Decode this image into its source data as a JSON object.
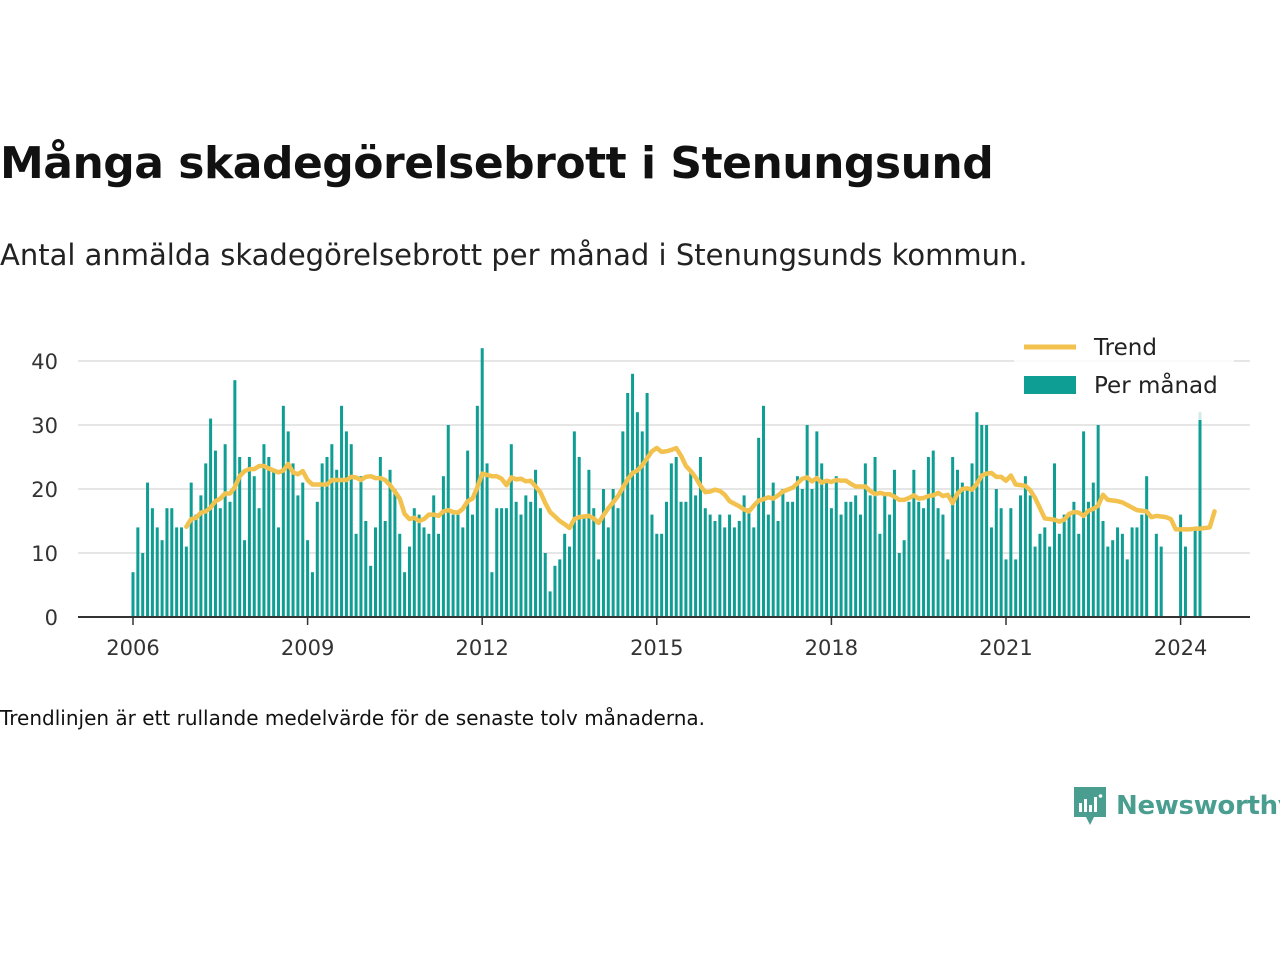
{
  "title": "Många skadegörelsebrott i Stenungsund",
  "subtitle": "Antal anmälda skadegörelsebrott per månad i Stenungsunds kommun.",
  "footnote": "Trendlinjen är ett rullande medelvärde för de senaste tolv månaderna.",
  "brand": {
    "name": "Newsworthy",
    "color": "#4a9e90"
  },
  "colors": {
    "bar": "#0f9e94",
    "trend": "#f2c14e",
    "grid": "#dddddd",
    "axis": "#333333"
  },
  "chart_data": {
    "type": "bar",
    "start": "2006-01",
    "xlabel": "",
    "ylabel": "",
    "ylim": [
      0,
      42
    ],
    "yticks": [
      0,
      10,
      20,
      30,
      40
    ],
    "xticks": [
      "2006",
      "2009",
      "2012",
      "2015",
      "2018",
      "2021",
      "2024"
    ],
    "grid": true,
    "legend_position": "top-right",
    "series": [
      {
        "name": "Per månad",
        "type": "bar",
        "values": [
          7,
          14,
          10,
          21,
          17,
          14,
          12,
          17,
          17,
          14,
          14,
          11,
          21,
          16,
          19,
          24,
          31,
          26,
          17,
          27,
          18,
          37,
          25,
          12,
          25,
          22,
          17,
          27,
          25,
          23,
          14,
          33,
          29,
          24,
          19,
          21,
          12,
          7,
          18,
          24,
          25,
          27,
          23,
          33,
          29,
          27,
          13,
          22,
          15,
          8,
          14,
          25,
          15,
          23,
          20,
          13,
          7,
          11,
          17,
          16,
          14,
          13,
          19,
          13,
          22,
          30,
          16,
          16,
          14,
          26,
          16,
          33,
          42,
          24,
          7,
          17,
          17,
          17,
          27,
          18,
          16,
          19,
          18,
          23,
          17,
          10,
          4,
          8,
          9,
          13,
          11,
          29,
          25,
          16,
          23,
          17,
          9,
          20,
          14,
          20,
          17,
          29,
          35,
          38,
          32,
          29,
          35,
          16,
          13,
          13,
          18,
          24,
          25,
          18,
          18,
          23,
          19,
          25,
          17,
          16,
          15,
          16,
          14,
          16,
          14,
          15,
          19,
          17,
          14,
          28,
          33,
          16,
          21,
          15,
          20,
          18,
          18,
          22,
          20,
          30,
          20,
          29,
          24,
          21,
          17,
          22,
          16,
          18,
          18,
          19,
          16,
          24,
          19,
          25,
          13,
          19,
          16,
          23,
          10,
          12,
          18,
          23,
          18,
          17,
          25,
          26,
          17,
          16,
          9,
          25,
          23,
          21,
          20,
          24,
          32,
          30,
          30,
          14,
          20,
          17,
          9,
          17,
          9,
          19,
          22,
          19,
          11,
          13,
          14,
          11,
          24,
          13,
          16,
          16,
          18,
          13,
          29,
          18,
          21,
          30,
          15,
          11,
          12,
          14,
          13,
          9,
          14,
          14,
          16,
          22,
          null,
          13,
          11,
          null,
          null,
          null,
          16,
          11,
          null,
          14,
          32
        ]
      },
      {
        "name": "Trend",
        "type": "line",
        "values": [
          null,
          null,
          null,
          null,
          null,
          null,
          null,
          null,
          null,
          null,
          null,
          14.1,
          15.3,
          15.5,
          16.3,
          16.5,
          17.1,
          18.1,
          18.5,
          19.3,
          19.3,
          20.3,
          22.0,
          22.8,
          23.1,
          23.1,
          23.6,
          23.6,
          23.2,
          22.9,
          22.6,
          22.9,
          23.9,
          22.6,
          22.3,
          22.8,
          21.4,
          20.7,
          20.7,
          20.7,
          20.7,
          21.4,
          21.4,
          21.4,
          21.4,
          21.9,
          21.8,
          21.4,
          21.9,
          22.0,
          21.7,
          21.7,
          21.4,
          20.6,
          19.6,
          18.5,
          16.1,
          15.3,
          15.5,
          15.0,
          15.3,
          16.0,
          16.0,
          15.8,
          16.5,
          16.7,
          16.4,
          16.3,
          16.9,
          18.1,
          18.5,
          20.3,
          22.4,
          22.2,
          22.0,
          22.0,
          21.6,
          20.6,
          21.8,
          21.5,
          21.6,
          21.2,
          21.3,
          20.4,
          19.5,
          17.8,
          16.4,
          15.7,
          15.0,
          14.5,
          13.9,
          15.3,
          15.6,
          15.7,
          15.8,
          15.4,
          14.7,
          15.9,
          17.0,
          17.9,
          18.9,
          20.2,
          21.5,
          22.5,
          22.9,
          23.7,
          24.8,
          25.9,
          26.4,
          25.8,
          25.9,
          26.1,
          26.4,
          25.2,
          23.6,
          22.8,
          21.8,
          20.5,
          19.5,
          19.6,
          19.9,
          19.7,
          19.1,
          18.1,
          17.7,
          17.3,
          16.8,
          16.5,
          17.4,
          18.2,
          18.4,
          18.7,
          18.5,
          19.0,
          19.6,
          19.9,
          20.2,
          20.9,
          21.6,
          21.8,
          21.2,
          21.7,
          21.0,
          21.3,
          21.1,
          21.4,
          21.3,
          21.3,
          20.8,
          20.4,
          20.4,
          20.4,
          19.7,
          19.2,
          19.4,
          19.2,
          19.2,
          18.8,
          18.3,
          18.3,
          18.6,
          19.0,
          18.5,
          18.6,
          18.9,
          19.0,
          19.4,
          18.9,
          19.1,
          17.8,
          19.3,
          20.0,
          20.1,
          19.9,
          20.8,
          22.1,
          22.4,
          22.5,
          21.9,
          21.9,
          21.3,
          22.1,
          20.7,
          20.6,
          20.5,
          19.8,
          18.6,
          17.0,
          15.4,
          15.3,
          15.2,
          14.9,
          15.2,
          16.1,
          16.4,
          16.3,
          15.8,
          16.6,
          16.9,
          17.4,
          19.1,
          18.3,
          18.2,
          18.1,
          17.9,
          17.5,
          17.1,
          16.7,
          16.6,
          16.5,
          15.6,
          15.8,
          15.7,
          15.6,
          15.3,
          13.7,
          13.7,
          13.7,
          13.7,
          13.8,
          13.8,
          13.9,
          14.0,
          16.5
        ]
      }
    ]
  }
}
